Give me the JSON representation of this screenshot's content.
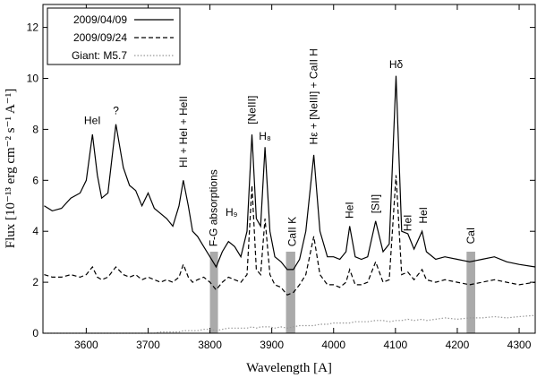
{
  "chart_data": {
    "type": "line",
    "xlabel": "Wavelength [A]",
    "ylabel": "Flux [10⁻¹³ erg cm⁻² s⁻¹ A⁻¹]",
    "xlim": [
      3530,
      4326
    ],
    "ylim": [
      0,
      12.9
    ],
    "xticks": [
      3600,
      3700,
      3800,
      3900,
      4000,
      4100,
      4200,
      4300
    ],
    "yticks": [
      0,
      2,
      4,
      6,
      8,
      10,
      12
    ],
    "legend": "upper left",
    "x": [
      3532,
      3545,
      3560,
      3575,
      3590,
      3600,
      3610,
      3618,
      3625,
      3635,
      3648,
      3660,
      3670,
      3680,
      3690,
      3700,
      3710,
      3720,
      3730,
      3740,
      3750,
      3757,
      3765,
      3772,
      3780,
      3790,
      3800,
      3810,
      3820,
      3830,
      3840,
      3850,
      3860,
      3868,
      3875,
      3882,
      3889,
      3897,
      3905,
      3915,
      3925,
      3935,
      3945,
      3955,
      3968,
      3978,
      3990,
      4000,
      4010,
      4020,
      4026,
      4035,
      4045,
      4055,
      4068,
      4080,
      4090,
      4101,
      4110,
      4120,
      4130,
      4143,
      4150,
      4165,
      4180,
      4200,
      4220,
      4240,
      4260,
      4280,
      4300,
      4326
    ],
    "series": [
      {
        "name": "2009/04/09",
        "color": "#000000",
        "dash": "solid",
        "values": [
          5.0,
          4.8,
          4.9,
          5.3,
          5.5,
          6.0,
          7.8,
          6.2,
          5.3,
          5.5,
          8.2,
          6.5,
          5.8,
          5.6,
          5.0,
          5.5,
          4.9,
          4.7,
          4.5,
          4.2,
          5.0,
          6.0,
          5.0,
          4.0,
          3.8,
          3.4,
          3.0,
          2.6,
          3.2,
          3.6,
          3.4,
          3.0,
          4.0,
          7.8,
          4.5,
          4.2,
          7.3,
          4.0,
          3.0,
          2.8,
          2.5,
          2.5,
          2.9,
          4.0,
          7.0,
          4.0,
          3.0,
          3.0,
          2.9,
          3.2,
          4.2,
          3.0,
          2.9,
          3.0,
          4.4,
          3.2,
          3.5,
          10.1,
          4.0,
          3.9,
          3.3,
          4.0,
          3.2,
          2.9,
          3.0,
          2.9,
          2.8,
          2.9,
          3.0,
          2.8,
          2.7,
          2.6
        ]
      },
      {
        "name": "2009/09/24",
        "color": "#000000",
        "dash": "dashed",
        "values": [
          2.3,
          2.2,
          2.2,
          2.3,
          2.2,
          2.3,
          2.6,
          2.2,
          2.1,
          2.2,
          2.6,
          2.3,
          2.2,
          2.3,
          2.1,
          2.2,
          2.1,
          2.0,
          2.1,
          2.0,
          2.2,
          2.7,
          2.2,
          2.0,
          2.1,
          2.2,
          2.0,
          1.7,
          2.0,
          2.2,
          2.1,
          2.0,
          2.3,
          5.8,
          2.5,
          2.3,
          4.5,
          2.3,
          1.9,
          1.8,
          1.5,
          1.6,
          1.9,
          2.3,
          3.8,
          2.3,
          1.9,
          1.9,
          1.8,
          2.0,
          2.5,
          1.9,
          1.9,
          2.0,
          2.8,
          2.0,
          2.1,
          6.2,
          2.3,
          2.4,
          2.1,
          2.5,
          2.1,
          2.0,
          2.1,
          2.0,
          1.9,
          2.0,
          2.1,
          2.0,
          1.9,
          2.0
        ]
      },
      {
        "name": "Giant: M5.7",
        "color": "#999999",
        "dash": "dotted",
        "values": [
          0.0,
          0.0,
          0.0,
          0.0,
          0.0,
          0.0,
          0.0,
          0.0,
          0.0,
          0.0,
          0.0,
          0.0,
          0.0,
          0.0,
          0.0,
          0.0,
          0.0,
          0.05,
          0.05,
          0.05,
          0.05,
          0.1,
          0.1,
          0.1,
          0.1,
          0.15,
          0.15,
          0.1,
          0.15,
          0.2,
          0.2,
          0.2,
          0.2,
          0.25,
          0.2,
          0.25,
          0.25,
          0.25,
          0.2,
          0.25,
          0.2,
          0.25,
          0.3,
          0.3,
          0.3,
          0.35,
          0.35,
          0.4,
          0.4,
          0.4,
          0.4,
          0.45,
          0.45,
          0.45,
          0.5,
          0.5,
          0.45,
          0.5,
          0.5,
          0.55,
          0.5,
          0.55,
          0.5,
          0.55,
          0.6,
          0.55,
          0.6,
          0.6,
          0.65,
          0.6,
          0.65,
          0.7
        ]
      }
    ],
    "shaded_regions": [
      [
        3800,
        3813
      ],
      [
        3923,
        3938
      ],
      [
        4215,
        4229
      ]
    ],
    "annotations": [
      {
        "text": "HeI",
        "x": 3610,
        "y": 8.2,
        "rotated": false
      },
      {
        "text": "?",
        "x": 3648,
        "y": 8.6,
        "rotated": false
      },
      {
        "text": "HI + HeI + HeII",
        "x": 3757,
        "y": 6.5,
        "rotated": true
      },
      {
        "text": "F-G absorptions",
        "x": 3806,
        "y": 3.4,
        "rotated": true
      },
      {
        "text": "H₉",
        "x": 3835,
        "y": 4.6,
        "rotated": false
      },
      {
        "text": "[NeIII]",
        "x": 3868,
        "y": 8.2,
        "rotated": true
      },
      {
        "text": "H₈",
        "x": 3889,
        "y": 7.6,
        "rotated": false
      },
      {
        "text": "CaII K",
        "x": 3933,
        "y": 3.4,
        "rotated": true
      },
      {
        "text": "Hε + [NeIII] + CaII H",
        "x": 3968,
        "y": 7.4,
        "rotated": true
      },
      {
        "text": "HeI",
        "x": 4026,
        "y": 4.5,
        "rotated": true
      },
      {
        "text": "[SII]",
        "x": 4068,
        "y": 4.7,
        "rotated": true
      },
      {
        "text": "Hδ",
        "x": 4101,
        "y": 10.4,
        "rotated": false
      },
      {
        "text": "HeI",
        "x": 4120,
        "y": 4.0,
        "rotated": true
      },
      {
        "text": "HeI",
        "x": 4145,
        "y": 4.3,
        "rotated": true
      },
      {
        "text": "CaI",
        "x": 4222,
        "y": 3.5,
        "rotated": true
      }
    ]
  }
}
